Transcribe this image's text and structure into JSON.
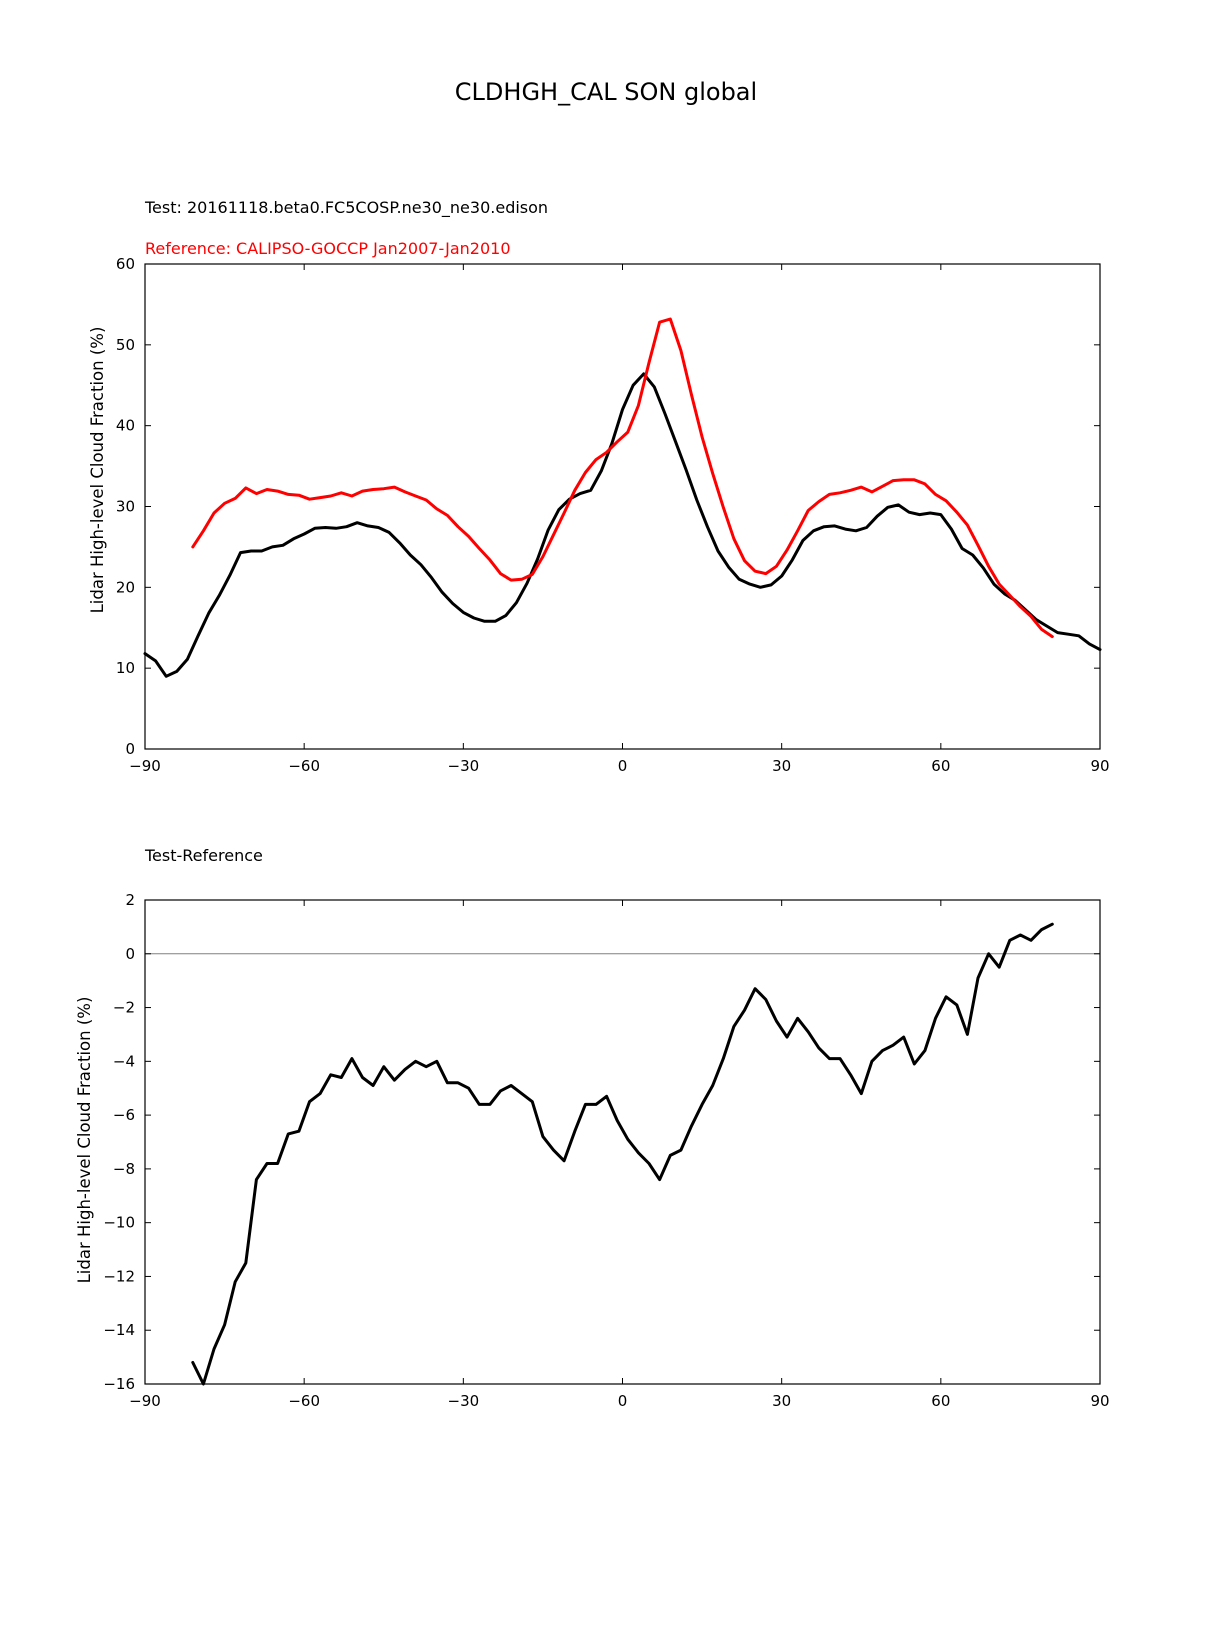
{
  "figure_title": "CLDHGH_CAL SON global",
  "colors": {
    "test": "#000000",
    "reference": "#ff0000",
    "zero_line": "#808080"
  },
  "chart_data": [
    {
      "type": "line",
      "id": "top",
      "title": "",
      "test_label": "Test: 20161118.beta0.FC5COSP.ne30_ne30.edison",
      "reference_label": "Reference: CALIPSO-GOCCP Jan2007-Jan2010",
      "xlabel": "",
      "ylabel": "Lidar High-level Cloud Fraction (%)",
      "xlim": [
        -90,
        90
      ],
      "ylim": [
        0,
        60
      ],
      "xticks": [
        -90,
        -60,
        -30,
        0,
        30,
        60,
        90
      ],
      "xtick_labels": [
        "−90",
        "−60",
        "−30",
        "0",
        "30",
        "60",
        "90"
      ],
      "yticks": [
        0,
        10,
        20,
        30,
        40,
        50,
        60
      ],
      "ytick_labels": [
        "0",
        "10",
        "20",
        "30",
        "40",
        "50",
        "60"
      ],
      "series": [
        {
          "name": "Test",
          "color": "#000000",
          "x": [
            -90,
            -88,
            -86,
            -84,
            -82,
            -80,
            -78,
            -76,
            -74,
            -72,
            -70,
            -68,
            -66,
            -64,
            -62,
            -60,
            -58,
            -56,
            -54,
            -52,
            -50,
            -48,
            -46,
            -44,
            -42,
            -40,
            -38,
            -36,
            -34,
            -32,
            -30,
            -28,
            -26,
            -24,
            -22,
            -20,
            -18,
            -16,
            -14,
            -12,
            -10,
            -8,
            -6,
            -4,
            -2,
            0,
            2,
            4,
            6,
            8,
            10,
            12,
            14,
            16,
            18,
            20,
            22,
            24,
            26,
            28,
            30,
            32,
            34,
            36,
            38,
            40,
            42,
            44,
            46,
            48,
            50,
            52,
            54,
            56,
            58,
            60,
            62,
            64,
            66,
            68,
            70,
            72,
            74,
            76,
            78,
            80,
            82,
            84,
            86,
            88,
            90
          ],
          "y": [
            11.8,
            10.9,
            9.0,
            9.6,
            11.1,
            14.0,
            16.8,
            19.0,
            21.5,
            24.3,
            24.5,
            24.5,
            25.0,
            25.2,
            26.0,
            26.6,
            27.3,
            27.4,
            27.3,
            27.5,
            28.0,
            27.6,
            27.4,
            26.8,
            25.5,
            24.0,
            22.8,
            21.2,
            19.4,
            18.0,
            16.9,
            16.2,
            15.8,
            15.8,
            16.5,
            18.1,
            20.5,
            23.5,
            27.1,
            29.6,
            30.9,
            31.6,
            32.0,
            34.4,
            37.8,
            42.0,
            45.0,
            46.4,
            44.8,
            41.5,
            38.0,
            34.5,
            30.8,
            27.5,
            24.5,
            22.5,
            21.0,
            20.4,
            20.0,
            20.3,
            21.4,
            23.4,
            25.8,
            27.0,
            27.5,
            27.6,
            27.2,
            27.0,
            27.4,
            28.8,
            29.9,
            30.2,
            29.3,
            29.0,
            29.2,
            29.0,
            27.2,
            24.8,
            24.0,
            22.4,
            20.4,
            19.2,
            18.4,
            17.2,
            16.0,
            15.2,
            14.4,
            14.2,
            14.0,
            13.0,
            12.3
          ]
        },
        {
          "name": "Reference",
          "color": "#ff0000",
          "x": [
            -81,
            -79,
            -77,
            -75,
            -73,
            -71,
            -69,
            -67,
            -65,
            -63,
            -61,
            -59,
            -57,
            -55,
            -53,
            -51,
            -49,
            -47,
            -45,
            -43,
            -41,
            -39,
            -37,
            -35,
            -33,
            -31,
            -29,
            -27,
            -25,
            -23,
            -21,
            -19,
            -17,
            -15,
            -13,
            -11,
            -9,
            -7,
            -5,
            -3,
            -1,
            1,
            3,
            5,
            7,
            9,
            11,
            13,
            15,
            17,
            19,
            21,
            23,
            25,
            27,
            29,
            31,
            33,
            35,
            37,
            39,
            41,
            43,
            45,
            47,
            49,
            51,
            53,
            55,
            57,
            59,
            61,
            63,
            65,
            67,
            69,
            71,
            73,
            75,
            77,
            79,
            81
          ],
          "y": [
            25.0,
            27.0,
            29.2,
            30.4,
            31.0,
            32.3,
            31.6,
            32.1,
            31.9,
            31.5,
            31.4,
            30.9,
            31.1,
            31.3,
            31.7,
            31.3,
            31.9,
            32.1,
            32.2,
            32.4,
            31.8,
            31.3,
            30.8,
            29.7,
            28.9,
            27.5,
            26.3,
            24.8,
            23.4,
            21.7,
            20.9,
            21.0,
            21.6,
            23.8,
            26.5,
            29.2,
            32.0,
            34.2,
            35.8,
            36.7,
            38.0,
            39.2,
            42.5,
            47.8,
            52.8,
            53.2,
            49.3,
            43.8,
            38.6,
            34.1,
            29.9,
            26.0,
            23.3,
            22.0,
            21.7,
            22.6,
            24.6,
            27.0,
            29.5,
            30.6,
            31.5,
            31.7,
            32.0,
            32.4,
            31.8,
            32.5,
            33.2,
            33.3,
            33.3,
            32.8,
            31.5,
            30.7,
            29.3,
            27.7,
            25.2,
            22.6,
            20.4,
            19.0,
            17.6,
            16.4,
            14.8,
            13.9
          ]
        }
      ]
    },
    {
      "type": "line",
      "id": "bottom",
      "title": "Test-Reference",
      "xlabel": "",
      "ylabel": "Lidar High-level Cloud Fraction (%)",
      "xlim": [
        -90,
        90
      ],
      "ylim": [
        -16,
        2
      ],
      "zero_line": 0,
      "xticks": [
        -90,
        -60,
        -30,
        0,
        30,
        60,
        90
      ],
      "xtick_labels": [
        "−90",
        "−60",
        "−30",
        "0",
        "30",
        "60",
        "90"
      ],
      "yticks": [
        -16,
        -14,
        -12,
        -10,
        -8,
        -6,
        -4,
        -2,
        0,
        2
      ],
      "ytick_labels": [
        "−16",
        "−14",
        "−12",
        "−10",
        "−8",
        "−6",
        "−4",
        "−2",
        "0",
        "2"
      ],
      "series": [
        {
          "name": "Test-Reference",
          "color": "#000000",
          "x": [
            -81,
            -79,
            -77,
            -75,
            -73,
            -71,
            -69,
            -67,
            -65,
            -63,
            -61,
            -59,
            -57,
            -55,
            -53,
            -51,
            -49,
            -47,
            -45,
            -43,
            -41,
            -39,
            -37,
            -35,
            -33,
            -31,
            -29,
            -27,
            -25,
            -23,
            -21,
            -19,
            -17,
            -15,
            -13,
            -11,
            -9,
            -7,
            -5,
            -3,
            -1,
            1,
            3,
            5,
            7,
            9,
            11,
            13,
            15,
            17,
            19,
            21,
            23,
            25,
            27,
            29,
            31,
            33,
            35,
            37,
            39,
            41,
            43,
            45,
            47,
            49,
            51,
            53,
            55,
            57,
            59,
            61,
            63,
            65,
            67,
            69,
            71,
            73,
            75,
            77,
            79,
            81
          ],
          "y": [
            -15.2,
            -16.0,
            -14.7,
            -13.8,
            -12.2,
            -11.5,
            -8.4,
            -7.8,
            -7.8,
            -6.7,
            -6.6,
            -5.5,
            -5.2,
            -4.5,
            -4.6,
            -3.9,
            -4.6,
            -4.9,
            -4.2,
            -4.7,
            -4.3,
            -4.0,
            -4.2,
            -4.0,
            -4.8,
            -4.8,
            -5.0,
            -5.6,
            -5.6,
            -5.1,
            -4.9,
            -5.2,
            -5.5,
            -6.8,
            -7.3,
            -7.7,
            -6.6,
            -5.6,
            -5.6,
            -5.3,
            -6.2,
            -6.9,
            -7.4,
            -7.8,
            -8.4,
            -7.5,
            -7.3,
            -6.4,
            -5.6,
            -4.9,
            -3.9,
            -2.7,
            -2.1,
            -1.3,
            -1.7,
            -2.5,
            -3.1,
            -2.4,
            -2.9,
            -3.5,
            -3.9,
            -3.9,
            -4.5,
            -5.2,
            -4.0,
            -3.6,
            -3.4,
            -3.1,
            -4.1,
            -3.6,
            -2.4,
            -1.6,
            -1.9,
            -3.0,
            -0.9,
            0.0,
            -0.5,
            0.5,
            0.7,
            0.5,
            0.9,
            1.1
          ]
        }
      ]
    }
  ]
}
